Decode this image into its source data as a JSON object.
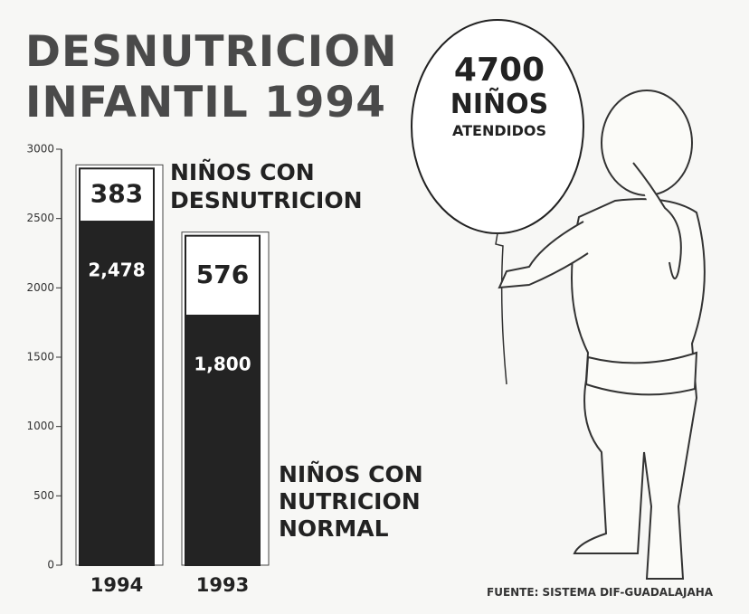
{
  "chart_data": {
    "type": "stacked-bar",
    "title": "DESNUTRICION INFANTIL 1994",
    "categories": [
      "1994",
      "1993"
    ],
    "series": [
      {
        "name": "NIÑOS CON NUTRICION NORMAL",
        "color": "#232323",
        "values": [
          2478,
          1800
        ],
        "value_labels": [
          "2,478",
          "1,800"
        ]
      },
      {
        "name": "NIÑOS CON DESNUTRICION",
        "color": "#ffffff",
        "values": [
          383,
          576
        ]
      }
    ],
    "ylim": [
      0,
      3000
    ],
    "yticks": [
      0,
      500,
      1000,
      1500,
      2000,
      2500,
      3000
    ],
    "annotation": [
      "4700",
      "NIÑOS",
      "ATENDIDOS"
    ],
    "source": "FUENTE: SISTEMA DIF-GUADALAJAHA"
  }
}
